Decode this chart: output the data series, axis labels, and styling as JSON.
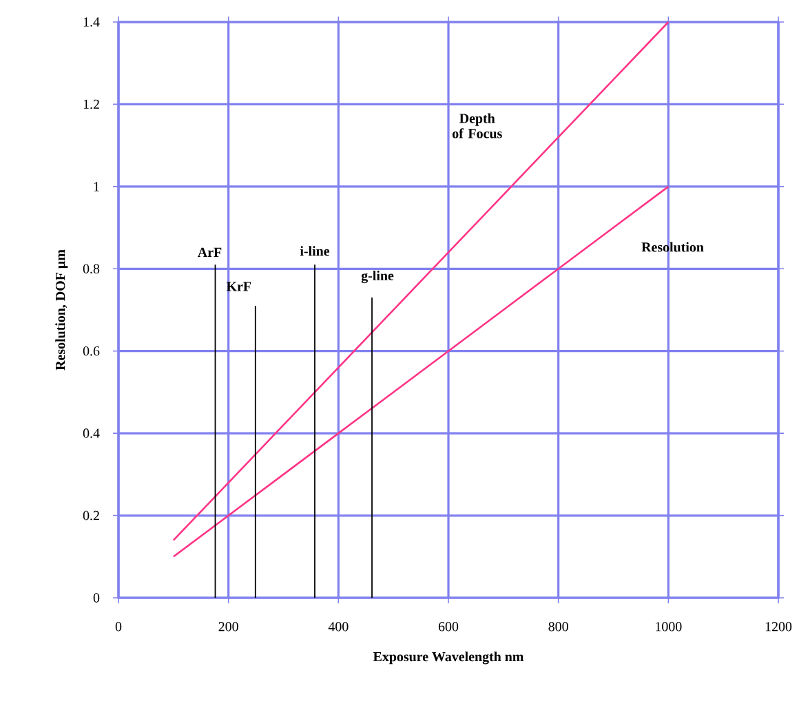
{
  "chart_data": {
    "type": "line",
    "xlabel": "Exposure Wavelength nm",
    "ylabel": "Resolution, DOF µm",
    "series": [
      {
        "color": "#ff3385",
        "x": [
          100,
          200,
          300,
          400,
          500,
          600,
          700,
          800,
          900,
          1000
        ],
        "values": [
          0.14,
          0.28,
          0.42,
          0.56,
          0.7,
          0.84,
          0.98,
          1.12,
          1.26,
          1.4
        ]
      },
      {
        "color": "#ff3385",
        "x": [
          100,
          200,
          300,
          400,
          500,
          600,
          700,
          800,
          900,
          1000
        ],
        "values": [
          0.1,
          0.2,
          0.3,
          0.4,
          0.5,
          0.6,
          0.7,
          0.8,
          0.9,
          1.0
        ]
      },
      {
        "type": "bar",
        "color": "#000000",
        "x": [
          176,
          249,
          357,
          461
        ],
        "values": [
          0.81,
          0.71,
          0.81,
          0.73
        ]
      }
    ],
    "annotations": [
      {
        "text": "ArF",
        "x": 176,
        "y": 0.81
      },
      {
        "text": "KrF",
        "x": 249,
        "y": 0.71
      },
      {
        "text": "i-line",
        "x": 357,
        "y": 0.81
      },
      {
        "text": "g-line",
        "x": 461,
        "y": 0.73
      },
      {
        "text": "Depth of Focus",
        "x": 760,
        "y": 1.064
      },
      {
        "text": "Resolution",
        "x": 900,
        "y": 0.9
      }
    ],
    "xlim": [
      0,
      1200
    ],
    "ylim": [
      0,
      1.4
    ],
    "xticks": [
      0,
      200,
      400,
      600,
      800,
      1000,
      1200
    ],
    "yticks": [
      0,
      0.2,
      0.4,
      0.6,
      0.8,
      1,
      1.2,
      1.4
    ],
    "grid": true,
    "marker": "none"
  }
}
